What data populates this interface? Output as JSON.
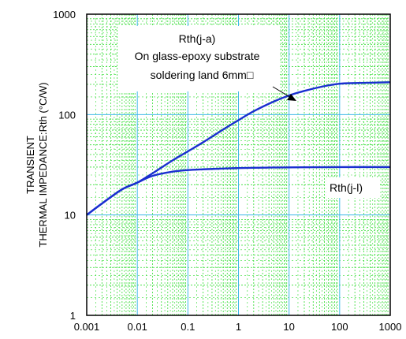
{
  "chart_data": {
    "type": "line",
    "xscale": "log",
    "yscale": "log",
    "xlim": [
      0.001,
      1000
    ],
    "ylim": [
      1,
      1000
    ],
    "grid": true,
    "ylabel_lines": [
      "TRANSIENT",
      "THERMAL IMPEDANCE:Rth (°C/W)"
    ],
    "xticks": [
      {
        "value": 0.001,
        "label": "0.001"
      },
      {
        "value": 0.01,
        "label": "0.01"
      },
      {
        "value": 0.1,
        "label": "0.1"
      },
      {
        "value": 1,
        "label": "1"
      },
      {
        "value": 10,
        "label": "10"
      },
      {
        "value": 100,
        "label": "100"
      },
      {
        "value": 1000,
        "label": "1000"
      }
    ],
    "yticks": [
      {
        "value": 1,
        "label": "1"
      },
      {
        "value": 10,
        "label": "10"
      },
      {
        "value": 100,
        "label": "100"
      },
      {
        "value": 1000,
        "label": "1000"
      }
    ],
    "series": [
      {
        "name": "Rth(j-a)",
        "color": "#1a2fd0",
        "x": [
          0.001,
          0.002,
          0.005,
          0.01,
          0.02,
          0.05,
          0.1,
          0.2,
          0.5,
          1,
          2,
          5,
          10,
          20,
          50,
          100,
          200,
          500,
          1000
        ],
        "y": [
          10,
          13,
          18,
          21,
          26,
          35,
          43,
          53,
          71,
          88,
          108,
          135,
          155,
          172,
          192,
          203,
          206,
          208,
          210
        ]
      },
      {
        "name": "Rth(j-l)",
        "color": "#1a2fd0",
        "x": [
          0.001,
          0.002,
          0.005,
          0.01,
          0.02,
          0.05,
          0.1,
          0.2,
          0.5,
          1,
          2,
          5,
          10,
          100,
          1000
        ],
        "y": [
          10,
          13,
          18,
          21,
          24.5,
          27,
          28,
          28.5,
          29,
          29.3,
          29.5,
          29.7,
          29.8,
          30,
          30
        ]
      }
    ],
    "annotations": {
      "box_lines": [
        "Rth(j-a)",
        "On glass-epoxy substrate",
        "soldering land 6mm□"
      ],
      "label_jl": "Rth(j-l)"
    },
    "colors": {
      "major_grid": "#3fb8e8",
      "minor_grid": "#33dd33",
      "axis": "#000000"
    }
  }
}
